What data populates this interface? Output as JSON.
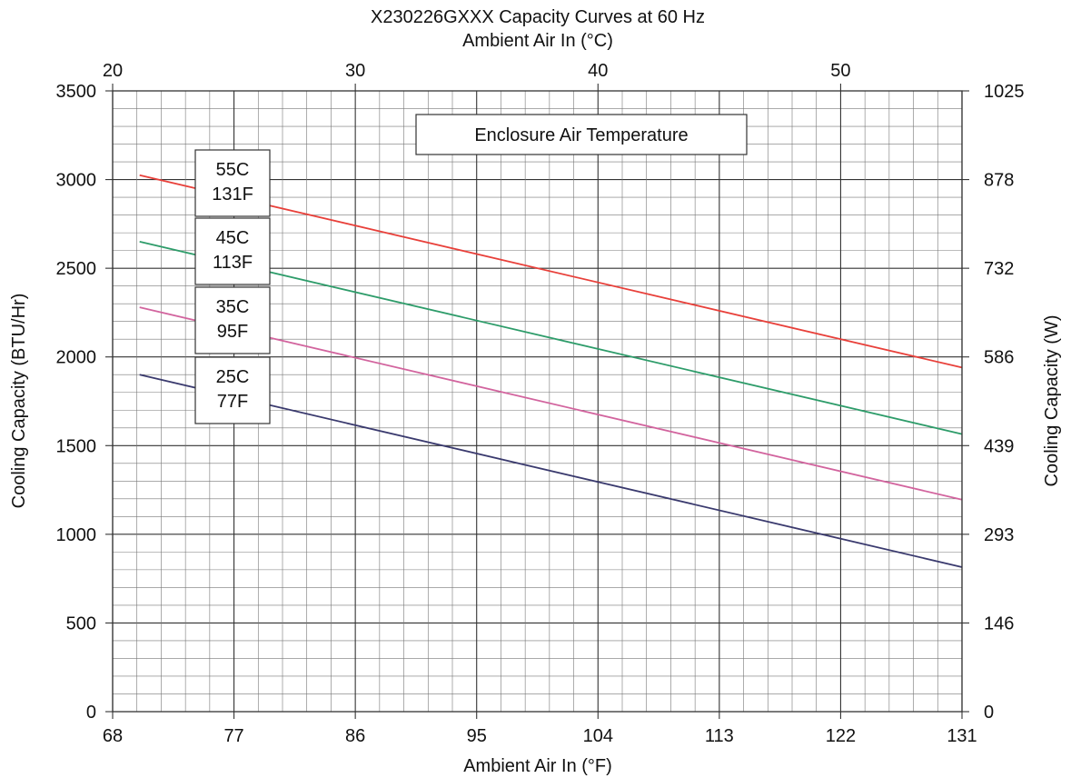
{
  "chart_data": {
    "type": "line",
    "title": "X230226GXXX Capacity Curves at 60 Hz",
    "top_axis_label": "Ambient Air In (°C)",
    "xlabel": "Ambient Air In (°F)",
    "ylabel": "Cooling Capacity (BTU/Hr)",
    "y2label": "Cooling Capacity (W)",
    "xlim": [
      68,
      131
    ],
    "ylim": [
      0,
      3500
    ],
    "x_ticks": [
      "68",
      "77",
      "86",
      "95",
      "104",
      "113",
      "122",
      "131"
    ],
    "top_ticks": [
      "20",
      "30",
      "40",
      "50"
    ],
    "y_ticks": [
      "0",
      "500",
      "1000",
      "1500",
      "2000",
      "2500",
      "3000",
      "3500"
    ],
    "y2_ticks": [
      "0",
      "146",
      "293",
      "439",
      "586",
      "732",
      "878",
      "1025"
    ],
    "grid": true,
    "legend_title": "Enclosure Air Temperature",
    "series": [
      {
        "name": "55C 131F",
        "label_lines": [
          "55C",
          "131F"
        ],
        "color": "#e8403a",
        "x": [
          70,
          131
        ],
        "y": [
          3025,
          1940
        ]
      },
      {
        "name": "45C 113F",
        "label_lines": [
          "45C",
          "113F"
        ],
        "color": "#2e9c6a",
        "x": [
          70,
          131
        ],
        "y": [
          2650,
          1565
        ]
      },
      {
        "name": "35C 95F",
        "label_lines": [
          "35C",
          "95F"
        ],
        "color": "#d2649e",
        "x": [
          70,
          131
        ],
        "y": [
          2280,
          1195
        ]
      },
      {
        "name": "25C 77F",
        "label_lines": [
          "25C",
          "77F"
        ],
        "color": "#3a3a6e",
        "x": [
          70,
          131
        ],
        "y": [
          1900,
          815
        ]
      }
    ]
  }
}
